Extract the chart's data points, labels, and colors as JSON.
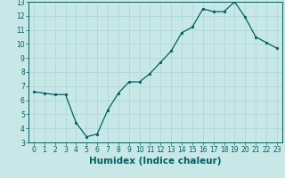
{
  "x": [
    0,
    1,
    2,
    3,
    4,
    5,
    6,
    7,
    8,
    9,
    10,
    11,
    12,
    13,
    14,
    15,
    16,
    17,
    18,
    19,
    20,
    21,
    22,
    23
  ],
  "y": [
    6.6,
    6.5,
    6.4,
    6.4,
    4.4,
    3.4,
    3.6,
    5.3,
    6.5,
    7.3,
    7.3,
    7.9,
    8.7,
    9.5,
    10.8,
    11.2,
    12.5,
    12.3,
    12.3,
    13.0,
    11.9,
    10.5,
    10.1,
    9.7
  ],
  "line_color": "#006060",
  "marker_color": "#006060",
  "bg_color": "#c8e8e8",
  "grid_color": "#b0d8d8",
  "xlabel": "Humidex (Indice chaleur)",
  "xlabel_fontsize": 7.5,
  "xlabel_weight": "bold",
  "ylim": [
    3,
    13
  ],
  "xlim": [
    -0.5,
    23.5
  ],
  "yticks": [
    3,
    4,
    5,
    6,
    7,
    8,
    9,
    10,
    11,
    12,
    13
  ],
  "xticks": [
    0,
    1,
    2,
    3,
    4,
    5,
    6,
    7,
    8,
    9,
    10,
    11,
    12,
    13,
    14,
    15,
    16,
    17,
    18,
    19,
    20,
    21,
    22,
    23
  ]
}
